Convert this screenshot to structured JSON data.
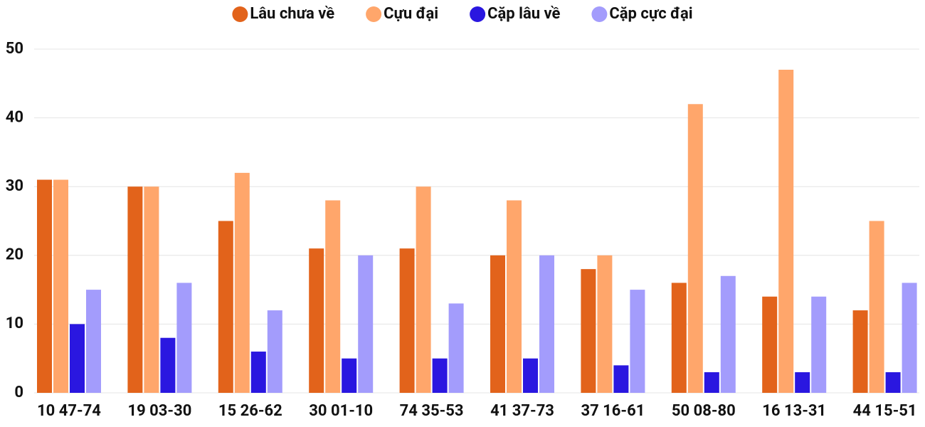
{
  "chart_data": {
    "type": "bar",
    "categories": [
      "10 47-74",
      "19 03-30",
      "15 26-62",
      "30 01-10",
      "74 35-53",
      "41 37-73",
      "37 16-61",
      "50 08-80",
      "16 13-31",
      "44 15-51"
    ],
    "series": [
      {
        "name": "Lâu chưa về",
        "color": "#e2631b",
        "values": [
          31,
          30,
          25,
          21,
          21,
          20,
          18,
          16,
          14,
          12
        ]
      },
      {
        "name": "Cựu đại",
        "color": "#ffa66b",
        "values": [
          31,
          30,
          32,
          28,
          30,
          28,
          20,
          42,
          47,
          25
        ]
      },
      {
        "name": "Cặp lâu về",
        "color": "#2a17e0",
        "values": [
          10,
          8,
          6,
          5,
          5,
          5,
          4,
          3,
          3,
          3
        ]
      },
      {
        "name": "Cặp cực đại",
        "color": "#a39cfc",
        "values": [
          15,
          16,
          12,
          20,
          13,
          20,
          15,
          17,
          14,
          16
        ]
      }
    ],
    "ylim": [
      0,
      50
    ],
    "yticks": [
      0,
      10,
      20,
      30,
      40,
      50
    ],
    "grid": true,
    "legend": "top"
  }
}
